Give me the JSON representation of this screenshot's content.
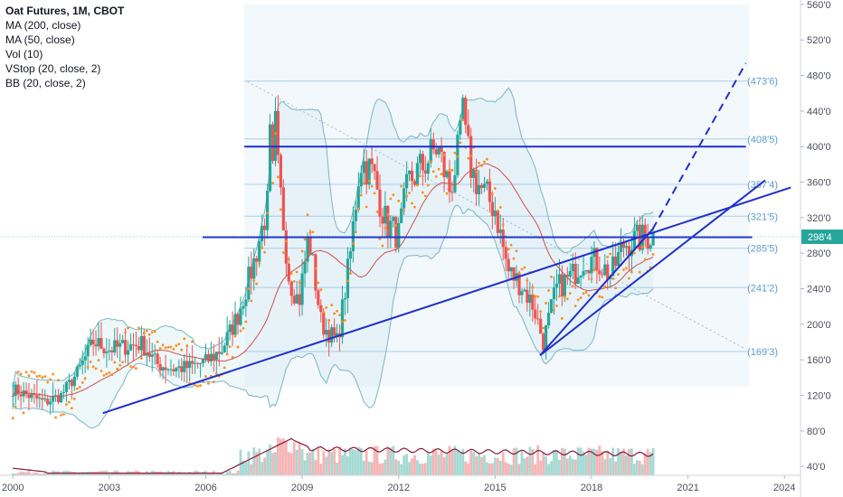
{
  "legend": {
    "title": "Oat Futures, 1M, CBOT",
    "lines": [
      "MA (200, close)",
      "MA (50, close)",
      "Vol (10)",
      "VStop (20, close, 2)",
      "BB (20, close, 2)"
    ]
  },
  "current_price": "298'4",
  "colors": {
    "up": "#26a69a",
    "down": "#ef5350",
    "trendline": "#1f2fcc",
    "fib": "#7fb0d8",
    "bb": "#7ab6c4",
    "ma": "#d2514a",
    "vstop": "#ff8c1a",
    "price_tag": "#26a69a",
    "vol_up": "#a6d9d3",
    "vol_down": "#f5b5b5",
    "vol_ma": "#8b1a3a"
  },
  "chart_data": {
    "type": "candlestick",
    "x_unit": "year",
    "xlim": [
      1999.6,
      2024.5
    ],
    "ylim": [
      30,
      565
    ],
    "x_ticks": [
      "2000",
      "2003",
      "2006",
      "2009",
      "2012",
      "2015",
      "2018",
      "2021",
      "2024"
    ],
    "y_ticks": [
      "40'0",
      "80'0",
      "120'0",
      "160'0",
      "200'0",
      "240'0",
      "280'0",
      "320'0",
      "360'0",
      "400'0",
      "440'0",
      "480'0",
      "520'0",
      "560'0"
    ],
    "fib_levels": [
      {
        "label": "(473'6)",
        "value": 473.75
      },
      {
        "label": "(408'5)",
        "value": 408.6
      },
      {
        "label": "(357'4)",
        "value": 357.5
      },
      {
        "label": "(321'5)",
        "value": 321.6
      },
      {
        "label": "(285'5)",
        "value": 285.6
      },
      {
        "label": "(241'2)",
        "value": 241.25
      },
      {
        "label": "(169'3)",
        "value": 169.4
      }
    ],
    "fib_range": {
      "x_start": 2007.2,
      "x_end": 2022.9
    },
    "horizontal_lines": [
      {
        "value": 400,
        "x_start": 2007.2,
        "x_end": 2022.8
      },
      {
        "value": 298,
        "x_start": 2005.9,
        "x_end": 2023.0
      }
    ],
    "trendlines": [
      {
        "x": [
          2002.8,
          2024.2
        ],
        "y": [
          100,
          354
        ],
        "dashed": false
      },
      {
        "x": [
          2016.4,
          2023.4
        ],
        "y": [
          165,
          362
        ],
        "dashed": false
      },
      {
        "x": [
          2016.4,
          2019.9
        ],
        "y": [
          165,
          307
        ],
        "dashed": false
      },
      {
        "x": [
          2019.9,
          2022.8
        ],
        "y": [
          307,
          494
        ],
        "dashed": true
      }
    ],
    "close_anchors": {
      "x": [
        2000.0,
        2001.0,
        2001.5,
        2002.0,
        2002.5,
        2003.0,
        2003.5,
        2004.0,
        2004.5,
        2005.0,
        2005.5,
        2006.0,
        2006.5,
        2007.0,
        2007.5,
        2007.9,
        2008.2,
        2008.6,
        2008.9,
        2009.2,
        2009.6,
        2010.1,
        2010.5,
        2010.8,
        2011.2,
        2011.6,
        2012.0,
        2012.3,
        2012.8,
        2013.2,
        2013.6,
        2014.0,
        2014.3,
        2014.6,
        2015.0,
        2015.4,
        2015.8,
        2016.2,
        2016.5,
        2016.9,
        2017.4,
        2017.8,
        2018.2,
        2018.6,
        2019.0,
        2019.4,
        2019.9
      ],
      "y": [
        127,
        112,
        120,
        145,
        180,
        172,
        175,
        178,
        155,
        150,
        152,
        158,
        172,
        210,
        270,
        330,
        390,
        250,
        225,
        300,
        200,
        180,
        280,
        385,
        370,
        315,
        300,
        360,
        380,
        400,
        350,
        420,
        370,
        350,
        330,
        260,
        245,
        220,
        180,
        240,
        255,
        275,
        270,
        255,
        290,
        295,
        300
      ]
    },
    "volume": {
      "ylim": [
        0,
        280
      ],
      "note": "monthly volume bars with Vol (10) moving average"
    }
  }
}
